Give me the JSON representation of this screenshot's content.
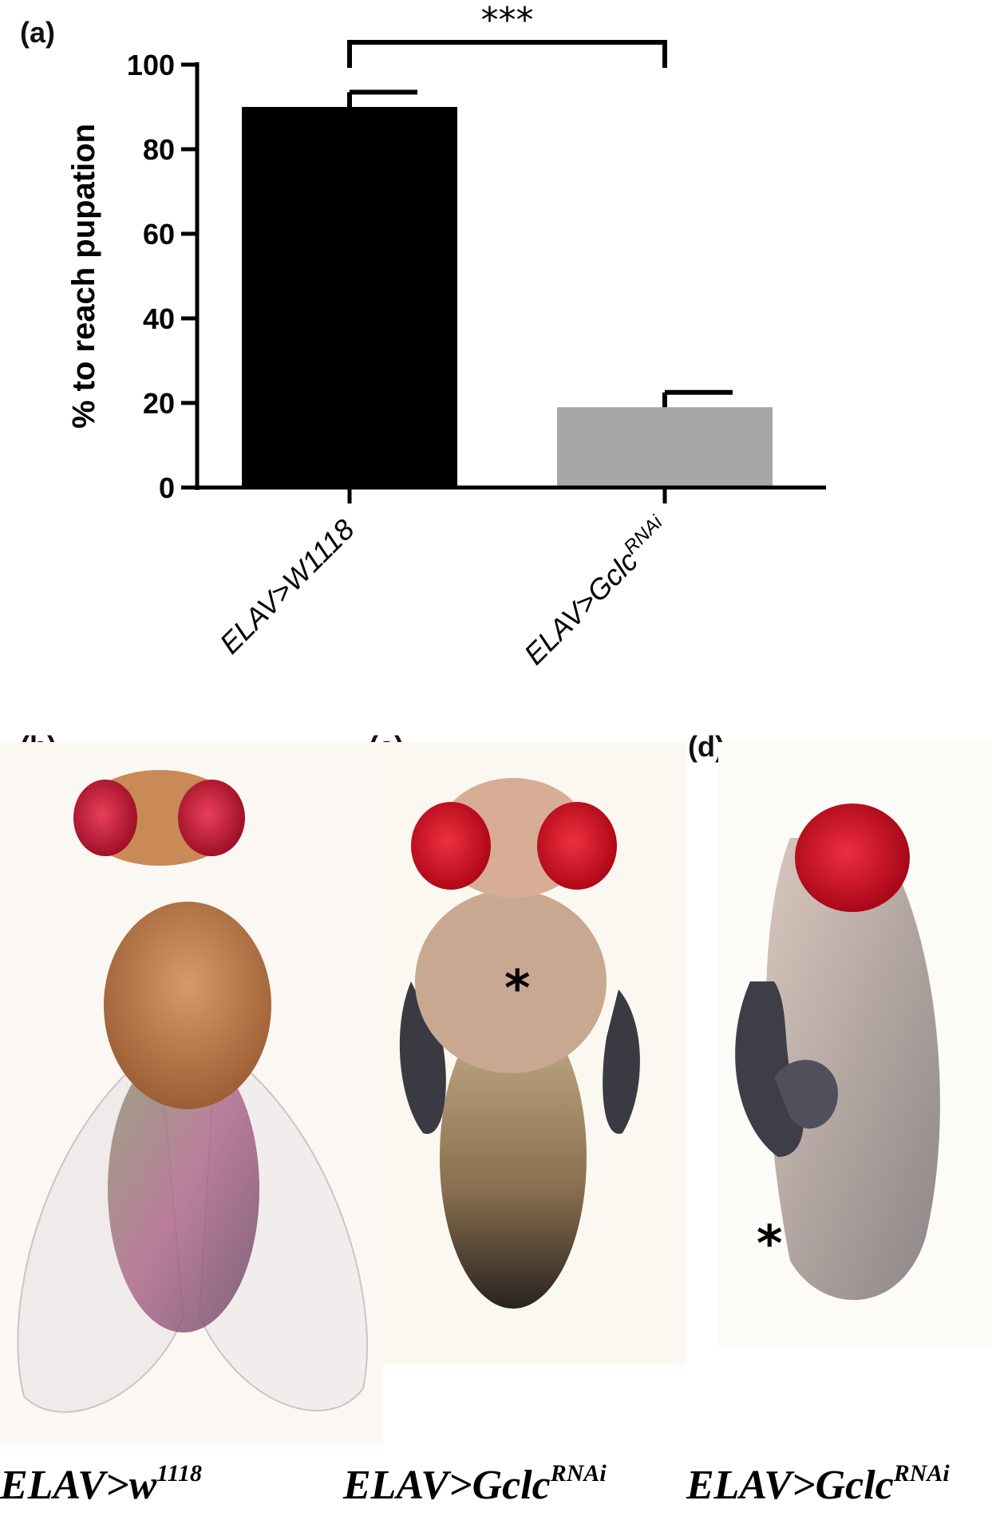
{
  "panels": {
    "a": "(a)",
    "b": "(b)",
    "c": "(c)",
    "d": "(d)"
  },
  "chart_data": {
    "type": "bar",
    "categories_base": [
      "ELAV>W1118",
      "ELAV>Gclc"
    ],
    "categories_sup": [
      "",
      "RNAi"
    ],
    "values": [
      90,
      19
    ],
    "errors": [
      3.5,
      3.5
    ],
    "colors": [
      "#000000",
      "#a7a7a9"
    ],
    "ylabel": "% to reach pupation",
    "ylim": [
      0,
      100
    ],
    "yticks": [
      0,
      20,
      40,
      60,
      80,
      100
    ],
    "significance": "***"
  },
  "photos": [
    {
      "caption_base": "ELAV>w",
      "caption_sup": "1118"
    },
    {
      "caption_base": "ELAV>Gclc",
      "caption_sup": "RNAi",
      "marker": "*"
    },
    {
      "caption_base": "ELAV>Gclc",
      "caption_sup": "RNAi",
      "marker": "*"
    }
  ]
}
